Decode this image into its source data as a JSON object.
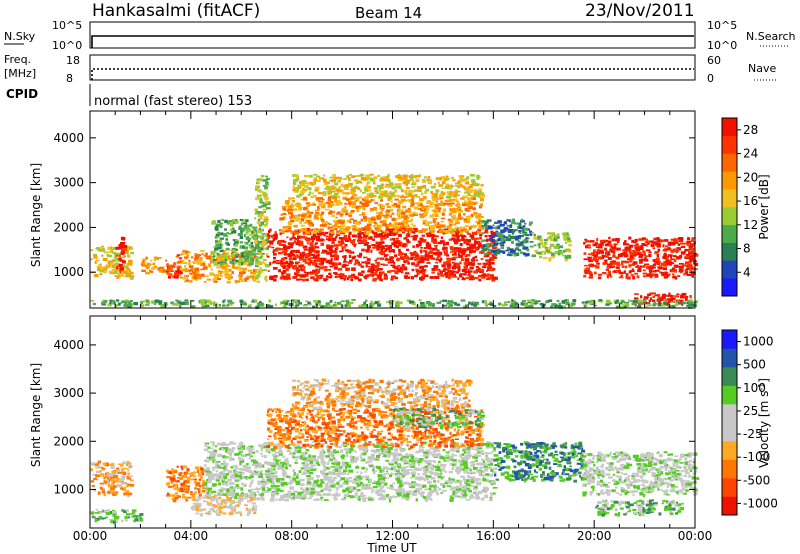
{
  "header": {
    "station": "Hankasalmi (fitACF)",
    "beam": "Beam 14",
    "date": "23/Nov/2011"
  },
  "noise_panel": {
    "left_label": "N.Sky",
    "left_ticks": [
      "10^5",
      "10^0"
    ],
    "right_ticks": [
      "10^5",
      "10^0"
    ],
    "right_label": "N.Search"
  },
  "freq_panel": {
    "left_label_1": "Freq.",
    "left_label_2": "[MHz]",
    "left_ticks": [
      "18",
      "8"
    ],
    "right_ticks": [
      "60",
      "0"
    ],
    "right_label": "Nave"
  },
  "cpid": {
    "label": "CPID",
    "text": "normal (fast stereo) 153"
  },
  "colors": {
    "power": [
      "#1a1aff",
      "#2244bb",
      "#2a7f55",
      "#4caa4a",
      "#99cc33",
      "#f0c020",
      "#ff9900",
      "#ff6600",
      "#ff3300",
      "#ee1100"
    ],
    "velocity": [
      "#ee1100",
      "#ff4400",
      "#ff7700",
      "#ffaa22",
      "#c8c8c8",
      "#c8c8c8",
      "#55cc22",
      "#3a8a55",
      "#2255aa",
      "#1a1aff"
    ]
  },
  "chart_data": [
    {
      "type": "heatmap",
      "title": "",
      "xlabel": "Time UT",
      "ylabel": "Slant Range [km]",
      "xlim_hours": [
        0,
        24
      ],
      "ylim_km": [
        200,
        4600
      ],
      "x_ticks": [
        "00:00",
        "04:00",
        "08:00",
        "12:00",
        "16:00",
        "20:00",
        "00:00"
      ],
      "y_ticks": [
        1000,
        2000,
        3000,
        4000
      ],
      "colorbar": {
        "label": "Power [dB]",
        "ticks": [
          "4",
          "8",
          "12",
          "16",
          "20",
          "24",
          "28"
        ],
        "range": [
          0,
          30
        ]
      },
      "echo_regions": [
        {
          "t0": 0.0,
          "t1": 1.6,
          "r0": 900,
          "r1": 1600,
          "level": 5
        },
        {
          "t0": 1.0,
          "t1": 1.3,
          "r0": 1000,
          "r1": 1800,
          "level": 9
        },
        {
          "t0": 2.0,
          "t1": 3.0,
          "r0": 1000,
          "r1": 1350,
          "level": 6
        },
        {
          "t0": 3.0,
          "t1": 3.6,
          "r0": 900,
          "r1": 1400,
          "level": 8
        },
        {
          "t0": 3.5,
          "t1": 6.5,
          "r0": 800,
          "r1": 1500,
          "level": 6
        },
        {
          "t0": 4.8,
          "t1": 6.8,
          "r0": 1200,
          "r1": 2200,
          "level": 3
        },
        {
          "t0": 6.5,
          "t1": 7.0,
          "r0": 800,
          "r1": 3200,
          "level": 4
        },
        {
          "t0": 7.0,
          "t1": 16.0,
          "r0": 850,
          "r1": 2000,
          "level": 9
        },
        {
          "t0": 7.5,
          "t1": 15.5,
          "r0": 1900,
          "r1": 2700,
          "level": 6
        },
        {
          "t0": 8.0,
          "t1": 15.5,
          "r0": 2700,
          "r1": 3200,
          "level": 5
        },
        {
          "t0": 15.5,
          "t1": 17.5,
          "r0": 1400,
          "r1": 2200,
          "level": 2
        },
        {
          "t0": 17.5,
          "t1": 19.0,
          "r0": 1300,
          "r1": 1900,
          "level": 4
        },
        {
          "t0": 19.5,
          "t1": 24.0,
          "r0": 900,
          "r1": 1800,
          "level": 9
        },
        {
          "t0": 21.5,
          "t1": 23.8,
          "r0": 300,
          "r1": 550,
          "level": 9
        },
        {
          "t0": 0.0,
          "t1": 24.0,
          "r0": 250,
          "r1": 400,
          "level": 3
        }
      ]
    },
    {
      "type": "heatmap",
      "title": "",
      "xlabel": "Time UT",
      "ylabel": "Slant Range [km]",
      "xlim_hours": [
        0,
        24
      ],
      "ylim_km": [
        200,
        4600
      ],
      "x_ticks": [
        "00:00",
        "04:00",
        "08:00",
        "12:00",
        "16:00",
        "20:00",
        "00:00"
      ],
      "y_ticks": [
        1000,
        2000,
        3000,
        4000
      ],
      "colorbar": {
        "label": "Velocity [m s^-1]",
        "ticks": [
          "1000",
          "500",
          "100",
          "25",
          "-25",
          "-100",
          "-500",
          "-1000"
        ],
        "range": [
          -1000,
          1000
        ]
      },
      "echo_regions": [
        {
          "t0": 0.0,
          "t1": 1.6,
          "r0": 900,
          "r1": 1600,
          "level": 3
        },
        {
          "t0": 3.0,
          "t1": 4.5,
          "r0": 800,
          "r1": 1500,
          "level": 2
        },
        {
          "t0": 4.5,
          "t1": 16.0,
          "r0": 800,
          "r1": 2000,
          "level": 5
        },
        {
          "t0": 7.0,
          "t1": 15.5,
          "r0": 1900,
          "r1": 2700,
          "level": 2
        },
        {
          "t0": 8.0,
          "t1": 15.0,
          "r0": 2700,
          "r1": 3300,
          "level": 3
        },
        {
          "t0": 12.0,
          "t1": 15.5,
          "r0": 2300,
          "r1": 2700,
          "level": 6
        },
        {
          "t0": 16.0,
          "t1": 19.5,
          "r0": 1200,
          "r1": 2000,
          "level": 7
        },
        {
          "t0": 19.5,
          "t1": 24.0,
          "r0": 900,
          "r1": 1800,
          "level": 5
        },
        {
          "t0": 20.0,
          "t1": 23.5,
          "r0": 500,
          "r1": 800,
          "level": 6
        },
        {
          "t0": 0.0,
          "t1": 2.0,
          "r0": 350,
          "r1": 600,
          "level": 6
        },
        {
          "t0": 4.0,
          "t1": 6.5,
          "r0": 500,
          "r1": 900,
          "level": 4
        }
      ]
    }
  ]
}
